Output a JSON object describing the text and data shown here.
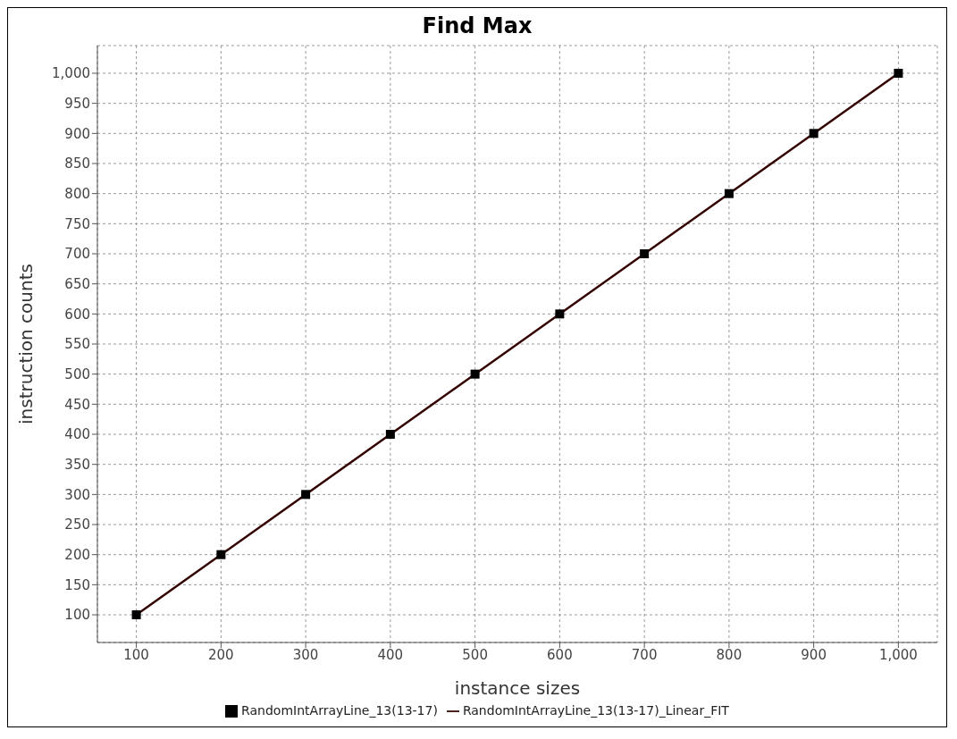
{
  "chart_data": {
    "type": "line",
    "title": "Find Max",
    "xlabel": "instance sizes",
    "ylabel": "instruction counts",
    "series": [
      {
        "name": "RandomIntArrayLine_13(13-17)",
        "type": "scatter",
        "marker": "square",
        "color": "#000000",
        "x": [
          100,
          200,
          300,
          400,
          500,
          600,
          700,
          800,
          900,
          1000
        ],
        "values": [
          100,
          200,
          300,
          400,
          500,
          600,
          700,
          800,
          900,
          1000
        ]
      },
      {
        "name": "RandomIntArrayLine_13(13-17)_Linear_FIT",
        "type": "line",
        "line_style": "solid",
        "color": "#330000",
        "x": [
          100,
          1000
        ],
        "values": [
          100,
          1000
        ]
      }
    ],
    "xlim": [
      54,
      1046
    ],
    "ylim": [
      54,
      1046
    ],
    "xticks": [
      100,
      200,
      300,
      400,
      500,
      600,
      700,
      800,
      900,
      {
        "value": 1000,
        "label": "1,000"
      }
    ],
    "yticks": [
      100,
      150,
      200,
      250,
      300,
      350,
      400,
      450,
      500,
      550,
      600,
      650,
      700,
      750,
      800,
      850,
      900,
      950,
      {
        "value": 1000,
        "label": "1,000"
      }
    ],
    "grid": true,
    "legend": "bottom"
  }
}
